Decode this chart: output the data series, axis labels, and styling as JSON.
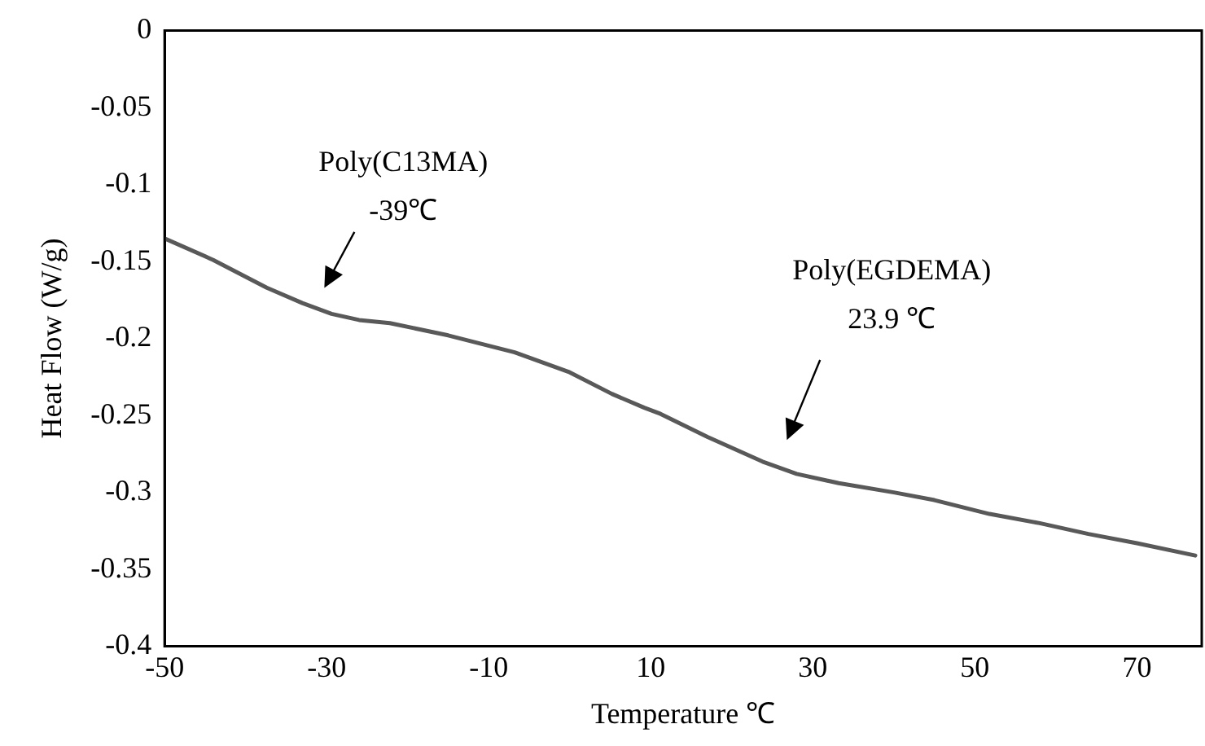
{
  "chart_data": {
    "type": "line",
    "xlabel": "Temperature ℃",
    "ylabel": "Heat Flow (W/g)",
    "xlim": [
      -50,
      78
    ],
    "xticks": [
      -50,
      -30,
      -10,
      10,
      30,
      50,
      70
    ],
    "ylim": [
      -0.4,
      0
    ],
    "yticks": [
      0,
      -0.05,
      -0.1,
      -0.15,
      -0.2,
      -0.25,
      -0.3,
      -0.35,
      -0.4
    ],
    "grid": false,
    "legend": false,
    "marker": "none",
    "series": [
      {
        "color": "#595959",
        "x": [
          -50,
          -44,
          -37.4,
          -33,
          -29.4,
          -26,
          -22.2,
          -15,
          -6.8,
          0,
          5.2,
          9.2,
          11.2,
          17,
          23.8,
          28,
          33.2,
          40,
          45,
          51.8,
          58,
          64,
          70,
          77.2
        ],
        "values": [
          -0.135,
          -0.149,
          -0.167,
          -0.177,
          -0.184,
          -0.188,
          -0.19,
          -0.198,
          -0.209,
          -0.222,
          -0.236,
          -0.245,
          -0.249,
          -0.264,
          -0.28,
          -0.288,
          -0.294,
          -0.3,
          -0.305,
          -0.314,
          -0.32,
          -0.327,
          -0.333,
          -0.341
        ]
      }
    ],
    "annotations": [
      "Poly(C13MA)\n-39℃",
      "Poly(EGDEMA)\n23.9 ℃"
    ]
  }
}
